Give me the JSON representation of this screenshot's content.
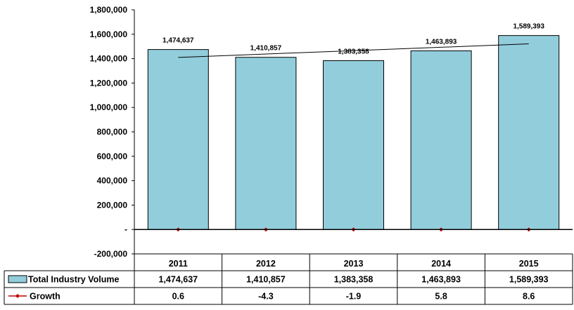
{
  "chart_data": {
    "type": "bar",
    "categories": [
      "2011",
      "2012",
      "2013",
      "2014",
      "2015"
    ],
    "series": [
      {
        "name": "Total Industry Volume",
        "values": [
          1474637,
          1410857,
          1383358,
          1463893,
          1589393
        ],
        "display": [
          "1,474,637",
          "1,410,857",
          "1,383,358",
          "1,463,893",
          "1,589,393"
        ],
        "color": "#92CDDC"
      },
      {
        "name": "Growth",
        "values": [
          0.6,
          -4.3,
          -1.9,
          5.8,
          8.6
        ],
        "display": [
          "0.6",
          "-4.3",
          "-1.9",
          "5.8",
          "8.6"
        ],
        "color": "#C00000"
      }
    ],
    "trendline": {
      "from": 1410000,
      "to": 1521000,
      "color": "#000000"
    },
    "ylim": [
      -200000,
      1800000
    ],
    "yticks": [
      -200000,
      0,
      200000,
      400000,
      600000,
      800000,
      1000000,
      1200000,
      1400000,
      1600000,
      1800000
    ],
    "ytick_labels": [
      "-200,000",
      "-",
      "200,000",
      "400,000",
      "600,000",
      "800,000",
      "1,000,000",
      "1,200,000",
      "1,400,000",
      "1,600,000",
      "1,800,000"
    ],
    "grid": false,
    "legend": "data-table",
    "bar_edge_color": "#000000"
  }
}
